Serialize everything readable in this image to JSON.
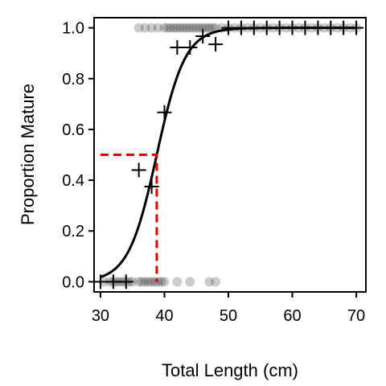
{
  "chart_data": {
    "type": "scatter",
    "title": "",
    "xlabel": "Total Length (cm)",
    "ylabel": "Proportion Mature",
    "xlim": [
      29,
      71.5
    ],
    "ylim": [
      -0.04,
      1.04
    ],
    "x_ticks": [
      30,
      40,
      50,
      60,
      70
    ],
    "y_ticks": [
      0.0,
      0.2,
      0.4,
      0.6,
      0.8,
      1.0
    ],
    "x_tick_labels": [
      "30",
      "40",
      "50",
      "60",
      "70"
    ],
    "y_tick_labels": [
      "0.0",
      "0.2",
      "0.4",
      "0.6",
      "0.8",
      "1.0"
    ],
    "grid": false,
    "logistic_fit": {
      "midpoint": 38.8,
      "slope": 0.45
    },
    "l50": {
      "x": 38.8,
      "y": 0.5,
      "color": "#dd0000"
    },
    "observations": {
      "immature_y0": [
        30.5,
        31.5,
        32,
        32.5,
        33,
        33.5,
        34,
        34.5,
        35,
        36,
        36.5,
        37,
        37.5,
        38,
        38.5,
        39,
        39.5,
        40,
        42,
        44,
        47,
        48
      ],
      "mature_y1": [
        36,
        37,
        38,
        39,
        40,
        40.5,
        41,
        41.5,
        42,
        42.5,
        43,
        43.5,
        44,
        44.5,
        45,
        45.5,
        46,
        46.5,
        47,
        47.5,
        48,
        49,
        50,
        51,
        52,
        53,
        54,
        55,
        56,
        57,
        58,
        59,
        60,
        61,
        62,
        63,
        64,
        65,
        66,
        67,
        68,
        69,
        70
      ]
    },
    "binned_proportions": {
      "x": [
        30,
        32,
        34,
        36,
        38,
        40,
        42,
        44,
        46,
        48,
        50,
        52,
        54,
        56,
        58,
        60,
        62,
        64,
        66,
        68,
        70
      ],
      "y": [
        0.0,
        0.0,
        0.0,
        0.44,
        0.375,
        0.667,
        0.923,
        0.923,
        0.967,
        0.935,
        1.0,
        1.0,
        1.0,
        1.0,
        1.0,
        1.0,
        1.0,
        1.0,
        1.0,
        1.0,
        1.0
      ]
    },
    "colors": {
      "points": "#000000",
      "curve": "#000000",
      "frame": "#000000"
    }
  }
}
